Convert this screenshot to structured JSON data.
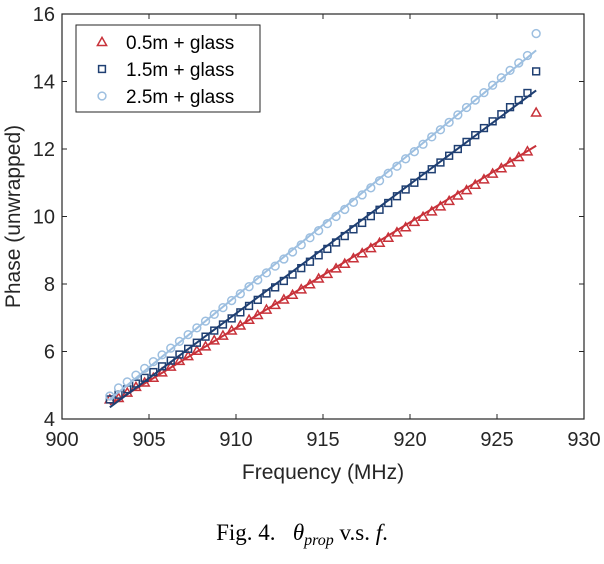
{
  "chart_data": {
    "type": "scatter",
    "xlabel": "Frequency (MHz)",
    "ylabel": "Phase (unwrapped)",
    "xlim": [
      900,
      930
    ],
    "ylim": [
      4,
      16
    ],
    "xticks": [
      900,
      905,
      910,
      915,
      920,
      925,
      930
    ],
    "yticks": [
      4,
      6,
      8,
      10,
      12,
      14,
      16
    ],
    "grid": false,
    "legend_position": "top-left",
    "series": [
      {
        "name": "0.5m + glass",
        "marker": "triangle",
        "color": "#c8323a",
        "fit_line": true,
        "x": [
          902.75,
          903.25,
          903.75,
          904.25,
          904.75,
          905.25,
          905.75,
          906.25,
          906.75,
          907.25,
          907.75,
          908.25,
          908.75,
          909.25,
          909.75,
          910.25,
          910.75,
          911.25,
          911.75,
          912.25,
          912.75,
          913.25,
          913.75,
          914.25,
          914.75,
          915.25,
          915.75,
          916.25,
          916.75,
          917.25,
          917.75,
          918.25,
          918.75,
          919.25,
          919.75,
          920.25,
          920.75,
          921.25,
          921.75,
          922.25,
          922.75,
          923.25,
          923.75,
          924.25,
          924.75,
          925.25,
          925.75,
          926.25,
          926.75,
          927.25
        ],
        "y": [
          4.58,
          4.62,
          4.78,
          4.95,
          5.08,
          5.22,
          5.38,
          5.55,
          5.72,
          5.86,
          6.02,
          6.15,
          6.33,
          6.47,
          6.62,
          6.77,
          6.94,
          7.08,
          7.24,
          7.38,
          7.54,
          7.68,
          7.84,
          7.99,
          8.16,
          8.3,
          8.46,
          8.6,
          8.76,
          8.91,
          9.06,
          9.22,
          9.37,
          9.53,
          9.68,
          9.84,
          9.99,
          10.15,
          10.3,
          10.46,
          10.62,
          10.78,
          10.94,
          11.1,
          11.27,
          11.43,
          11.6,
          11.76,
          11.93,
          13.08
        ]
      },
      {
        "name": "1.5m + glass",
        "marker": "square",
        "color": "#1f3f72",
        "fit_line": true,
        "x": [
          902.75,
          903.25,
          903.75,
          904.25,
          904.75,
          905.25,
          905.75,
          906.25,
          906.75,
          907.25,
          907.75,
          908.25,
          908.75,
          909.25,
          909.75,
          910.25,
          910.75,
          911.25,
          911.75,
          912.25,
          912.75,
          913.25,
          913.75,
          914.25,
          914.75,
          915.25,
          915.75,
          916.25,
          916.75,
          917.25,
          917.75,
          918.25,
          918.75,
          919.25,
          919.75,
          920.25,
          920.75,
          921.25,
          921.75,
          922.25,
          922.75,
          923.25,
          923.75,
          924.25,
          924.75,
          925.25,
          925.75,
          926.25,
          926.75,
          927.25
        ],
        "y": [
          4.58,
          4.72,
          4.88,
          5.05,
          5.22,
          5.39,
          5.56,
          5.73,
          5.91,
          6.08,
          6.26,
          6.44,
          6.62,
          6.8,
          6.98,
          7.16,
          7.35,
          7.53,
          7.72,
          7.9,
          8.09,
          8.28,
          8.47,
          8.66,
          8.85,
          9.04,
          9.23,
          9.42,
          9.62,
          9.81,
          10.01,
          10.2,
          10.4,
          10.6,
          10.8,
          11.0,
          11.2,
          11.4,
          11.6,
          11.8,
          12.0,
          12.21,
          12.41,
          12.62,
          12.82,
          13.03,
          13.24,
          13.45,
          13.66,
          14.3
        ]
      },
      {
        "name": "2.5m + glass",
        "marker": "circle",
        "color": "#9dbfe0",
        "fit_line": true,
        "x": [
          902.75,
          903.25,
          903.75,
          904.25,
          904.75,
          905.25,
          905.75,
          906.25,
          906.75,
          907.25,
          907.75,
          908.25,
          908.75,
          909.25,
          909.75,
          910.25,
          910.75,
          911.25,
          911.75,
          912.25,
          912.75,
          913.25,
          913.75,
          914.25,
          914.75,
          915.25,
          915.75,
          916.25,
          916.75,
          917.25,
          917.75,
          918.25,
          918.75,
          919.25,
          919.75,
          920.25,
          920.75,
          921.25,
          921.75,
          922.25,
          922.75,
          923.25,
          923.75,
          924.25,
          924.75,
          925.25,
          925.75,
          926.25,
          926.75,
          927.25
        ],
        "y": [
          4.68,
          4.92,
          5.1,
          5.3,
          5.5,
          5.7,
          5.9,
          6.1,
          6.3,
          6.5,
          6.7,
          6.9,
          7.1,
          7.3,
          7.51,
          7.71,
          7.92,
          8.12,
          8.33,
          8.53,
          8.74,
          8.95,
          9.16,
          9.37,
          9.58,
          9.79,
          10.0,
          10.21,
          10.42,
          10.64,
          10.85,
          11.06,
          11.28,
          11.49,
          11.71,
          11.92,
          12.14,
          12.36,
          12.57,
          12.79,
          13.01,
          13.23,
          13.45,
          13.67,
          13.89,
          14.11,
          14.33,
          14.55,
          14.77,
          15.42
        ]
      }
    ]
  },
  "caption": {
    "prefix": "Fig. 4.",
    "theta": "θ",
    "subscript": "prop",
    "middle": "v.s.",
    "variable": "f",
    "suffix": "."
  }
}
